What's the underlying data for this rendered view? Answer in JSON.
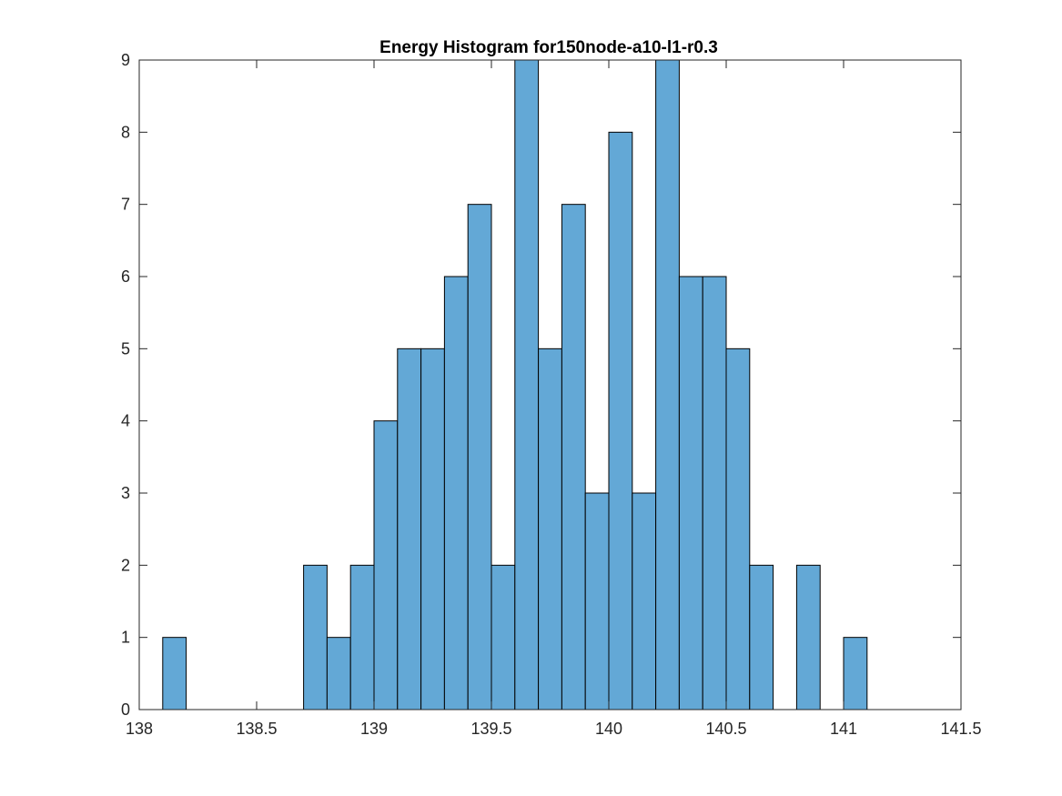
{
  "chart_data": {
    "type": "bar",
    "title": "Energy Histogram for150node-a10-l1-r0.3",
    "xlabel": "",
    "ylabel": "",
    "xlim": [
      138,
      141.5
    ],
    "ylim": [
      0,
      9
    ],
    "xticks": [
      138,
      138.5,
      139,
      139.5,
      140,
      140.5,
      141,
      141.5
    ],
    "xtick_labels": [
      "138",
      "138.5",
      "139",
      "139.5",
      "140",
      "140.5",
      "141",
      "141.5"
    ],
    "yticks": [
      0,
      1,
      2,
      3,
      4,
      5,
      6,
      7,
      8,
      9
    ],
    "ytick_labels": [
      "0",
      "1",
      "2",
      "3",
      "4",
      "5",
      "6",
      "7",
      "8",
      "9"
    ],
    "bin_edges": [
      138.1,
      138.2,
      138.3,
      138.4,
      138.5,
      138.6,
      138.7,
      138.8,
      138.9,
      139.0,
      139.1,
      139.2,
      139.3,
      139.4,
      139.5,
      139.6,
      139.7,
      139.8,
      139.9,
      140.0,
      140.1,
      140.2,
      140.3,
      140.4,
      140.5,
      140.6,
      140.7,
      140.8,
      140.9,
      141.0,
      141.1
    ],
    "values": [
      1,
      0,
      0,
      0,
      0,
      0,
      2,
      1,
      2,
      4,
      5,
      5,
      6,
      7,
      2,
      9,
      5,
      7,
      3,
      8,
      3,
      9,
      6,
      6,
      5,
      2,
      0,
      2,
      0,
      1
    ],
    "bar_color": "#63a8d6",
    "edge_color": "#000000",
    "grid": false,
    "legend": "none"
  }
}
